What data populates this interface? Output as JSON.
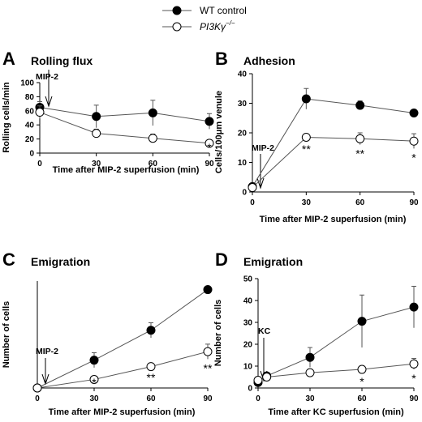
{
  "legend": {
    "entries": [
      {
        "label": "WT control",
        "marker": "filled"
      },
      {
        "label": "PI3Kγ",
        "superscript": "−/−",
        "marker": "open",
        "italic": true
      }
    ]
  },
  "colors": {
    "line": "#555555",
    "filled_marker": "#000000",
    "open_marker": "#ffffff",
    "axis": "#000000"
  },
  "chart_data": [
    {
      "panel": "A",
      "type": "line",
      "title": "Rolling flux",
      "xlabel": "Time after MIP-2 superfusion (min)",
      "ylabel": "Rolling cells/min",
      "xlim": [
        0,
        90
      ],
      "ylim": [
        0,
        100
      ],
      "xticks": [
        0,
        30,
        60,
        90
      ],
      "yticks": [
        0,
        20,
        40,
        60,
        80,
        100
      ],
      "annotation": "MIP-2",
      "series": [
        {
          "name": "WT control",
          "x": [
            0,
            30,
            60,
            90
          ],
          "y": [
            65,
            52,
            57,
            45
          ],
          "err": [
            8,
            16,
            18,
            11
          ],
          "marker": "filled"
        },
        {
          "name": "PI3Kγ−/−",
          "x": [
            0,
            30,
            60,
            90
          ],
          "y": [
            58,
            28,
            21,
            14
          ],
          "err": [
            9,
            6,
            6,
            2
          ],
          "marker": "open",
          "sig": [
            "",
            "",
            "",
            "*"
          ]
        }
      ]
    },
    {
      "panel": "B",
      "type": "line",
      "title": "Adhesion",
      "xlabel": "Time after MIP-2 superfusion (min)",
      "ylabel": "Cells/100μm venule",
      "xlim": [
        0,
        90
      ],
      "ylim": [
        0,
        40
      ],
      "xticks": [
        0,
        30,
        60,
        90
      ],
      "yticks": [
        0,
        10,
        20,
        30,
        40
      ],
      "annotation": "MIP-2",
      "series": [
        {
          "name": "WT control",
          "x": [
            0,
            30,
            60,
            90
          ],
          "y": [
            1.8,
            31.5,
            29.3,
            26.7
          ],
          "err": [
            0.5,
            3.5,
            1.5,
            1
          ],
          "marker": "filled"
        },
        {
          "name": "PI3Kγ−/−",
          "x": [
            0,
            30,
            60,
            90
          ],
          "y": [
            1.5,
            18.5,
            18,
            17.2
          ],
          "err": [
            0.5,
            1,
            2,
            2.5
          ],
          "marker": "open",
          "sig": [
            "",
            "**",
            "**",
            "*"
          ]
        }
      ]
    },
    {
      "panel": "C",
      "type": "line",
      "title": "Emigration",
      "xlabel": "Time after MIP-2 superfusion (min)",
      "ylabel": "Number of cells",
      "xlim": [
        0,
        90
      ],
      "ylim": [
        0,
        50
      ],
      "xticks": [
        0,
        30,
        60,
        90
      ],
      "yticks": [],
      "annotation": "MIP-2",
      "series": [
        {
          "name": "WT control",
          "x": [
            0,
            30,
            60,
            90
          ],
          "y": [
            0,
            13,
            27,
            46
          ],
          "err": [
            0,
            3.5,
            3.5,
            0
          ],
          "marker": "filled"
        },
        {
          "name": "PI3Kγ−/−",
          "x": [
            0,
            30,
            60,
            90
          ],
          "y": [
            0,
            4,
            10,
            17
          ],
          "err": [
            0,
            1,
            1,
            3.5
          ],
          "marker": "open",
          "sig": [
            "",
            "*",
            "**",
            "**"
          ]
        }
      ]
    },
    {
      "panel": "D",
      "type": "line",
      "title": "Emigration",
      "xlabel": "Time after KC superfusion (min)",
      "ylabel": "Number of cells",
      "xlim": [
        0,
        90
      ],
      "ylim": [
        0,
        50
      ],
      "xticks": [
        0,
        30,
        60,
        90
      ],
      "yticks": [
        0,
        10,
        20,
        30,
        40,
        50
      ],
      "annotation": "KC",
      "series": [
        {
          "name": "WT control",
          "x": [
            0,
            5,
            30,
            60,
            90
          ],
          "y": [
            2.5,
            5.5,
            14,
            30.5,
            37
          ],
          "err": [
            1,
            1.5,
            4.5,
            12,
            9.5
          ],
          "marker": "filled"
        },
        {
          "name": "PI3Kγ−/−",
          "x": [
            0,
            5,
            30,
            60,
            90
          ],
          "y": [
            3.5,
            5,
            7,
            8.5,
            11
          ],
          "err": [
            1,
            1,
            1.5,
            1.5,
            2.5
          ],
          "marker": "open",
          "sig": [
            "",
            "",
            "",
            "*",
            "*"
          ]
        }
      ]
    }
  ]
}
